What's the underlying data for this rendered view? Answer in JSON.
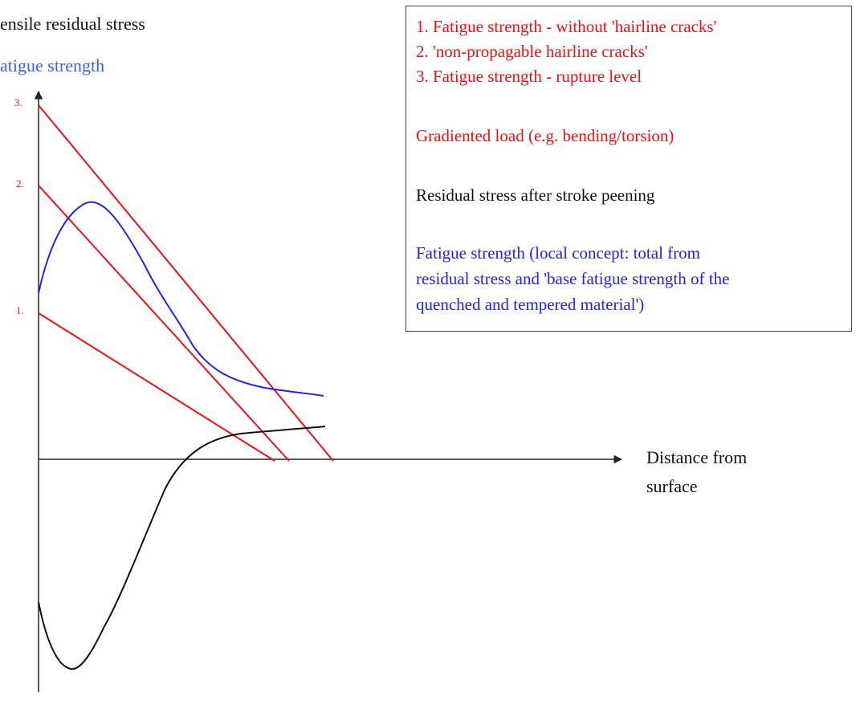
{
  "colors": {
    "limit_lines": "#ee1111",
    "fatigue_curve": "#2222ee",
    "residual_curve": "#111111",
    "axis": "#222222"
  },
  "labels": {
    "y_tensile": "ensile residual stress",
    "y_fatigue": "atigue strength",
    "x_axis_line1": "Distance from",
    "x_axis_line2": "surface",
    "tick_1": "1.",
    "tick_2": "2.",
    "tick_3": "3."
  },
  "legend": {
    "line1": "1. Fatigue strength - without  'hairline cracks'",
    "line2": "2.  'non-propagable hairline cracks'",
    "line3": "3. Fatigue strength - rupture level",
    "load": "Gradiented load (e.g. bending/torsion)",
    "residual": "Residual stress after stroke peening",
    "fatigue_1": "Fatigue strength (local concept: total from",
    "fatigue_2": "residual stress and  'base fatigue strength of the",
    "fatigue_3": "quenched and tempered material')"
  }
}
